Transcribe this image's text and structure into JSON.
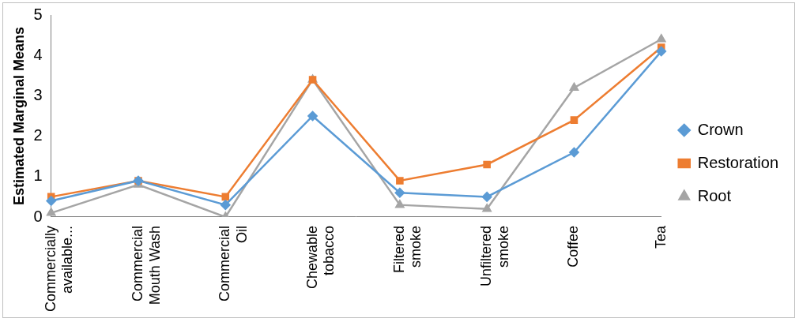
{
  "chart_data": {
    "type": "line",
    "y_label": "Estimated Marginal Means",
    "categories": [
      "Commercially available...",
      "Commercial Mouth Wash",
      "Commercial Oil",
      "Chewable tobacco",
      "Filtered smoke",
      "Unfiltered smoke",
      "Coffee",
      "Tea"
    ],
    "series": [
      {
        "name": "Crown",
        "color": "#5b9bd5",
        "marker": "diamond",
        "values": [
          0.4,
          0.9,
          0.3,
          2.5,
          0.6,
          0.5,
          1.6,
          4.1
        ]
      },
      {
        "name": "Restoration",
        "color": "#ed7d31",
        "marker": "square",
        "values": [
          0.5,
          0.9,
          0.5,
          3.4,
          0.9,
          1.3,
          2.4,
          4.2
        ]
      },
      {
        "name": "Root",
        "color": "#a5a5a5",
        "marker": "triangle",
        "values": [
          0.1,
          0.8,
          0.0,
          3.4,
          0.3,
          0.2,
          3.2,
          4.4
        ]
      }
    ],
    "ylim": [
      0,
      5
    ],
    "yticks": [
      0,
      1,
      2,
      3,
      4,
      5
    ],
    "grid": false,
    "legend": "right"
  }
}
